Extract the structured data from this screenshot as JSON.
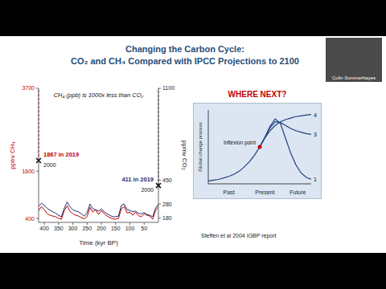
{
  "title": [
    "Changing the Carbon Cycle:",
    "CO₂ and CH₄ Compared with IPCC Projections to 2100"
  ],
  "speaker": "Colin Summerhayes",
  "chart_data": [
    {
      "type": "line",
      "xlabel": "Time (kyr BP)",
      "ylabel": "ppbv CH₄",
      "y2label": "ppmv CO₂",
      "annotations": [
        "CH₄ (ppb) is 1000x less than CO₂"
      ],
      "x": [
        420,
        410,
        400,
        390,
        380,
        370,
        360,
        350,
        340,
        330,
        320,
        310,
        300,
        290,
        280,
        270,
        260,
        250,
        240,
        230,
        220,
        210,
        200,
        190,
        180,
        170,
        160,
        150,
        140,
        130,
        120,
        110,
        100,
        90,
        80,
        70,
        60,
        50,
        40,
        30,
        20,
        10,
        0
      ],
      "xlim": [
        420,
        0
      ],
      "xticks": [
        400,
        350,
        300,
        250,
        200,
        150,
        100,
        50
      ],
      "ylim": [
        300,
        3700
      ],
      "yticks": [
        400,
        1600,
        3700
      ],
      "y2lim": [
        150,
        1100
      ],
      "y2ticks": [
        180,
        280,
        450,
        1100
      ],
      "series": [
        {
          "color": "#c00000",
          "values": [
            600,
            700,
            620,
            520,
            480,
            460,
            440,
            400,
            380,
            600,
            720,
            580,
            520,
            480,
            460,
            420,
            390,
            450,
            680,
            560,
            620,
            500,
            600,
            520,
            460,
            420,
            390,
            380,
            400,
            650,
            700,
            540,
            560,
            480,
            560,
            470,
            440,
            520,
            480,
            460,
            380,
            600,
            700
          ],
          "now": {
            "value": 1867,
            "label": "1867 in 2019",
            "note": "2000"
          },
          "projection_2100": 3700
        },
        {
          "color": "#1f2d6e",
          "axis": "y2",
          "values": [
            265,
            285,
            270,
            250,
            235,
            225,
            215,
            200,
            190,
            250,
            295,
            260,
            240,
            230,
            225,
            210,
            195,
            220,
            280,
            245,
            240,
            230,
            245,
            225,
            210,
            200,
            190,
            190,
            195,
            270,
            280,
            240,
            235,
            225,
            230,
            215,
            210,
            220,
            205,
            200,
            190,
            250,
            280
          ],
          "now": {
            "value": 411,
            "label": "411 in 2019",
            "note": "2000"
          },
          "projection_2100": 1100
        }
      ]
    },
    {
      "type": "line",
      "title": "WHERE NEXT?",
      "ylabel": "Global change process",
      "caption": "Steffen et al 2004 IGBP report",
      "x": [
        0,
        0.5,
        1,
        1.5,
        2,
        2.5,
        3,
        3.5,
        4,
        4.5,
        5,
        5.5,
        6,
        6.5,
        7,
        7.5,
        8,
        8.5,
        9,
        9.5,
        10
      ],
      "xlim": [
        0,
        10
      ],
      "ylim": [
        0,
        1
      ],
      "xticks": [
        {
          "value": 2,
          "label": "Past"
        },
        {
          "value": 5.5,
          "label": "Present"
        },
        {
          "value": 8.7,
          "label": "Future"
        }
      ],
      "yticks": [],
      "tick_labels": "x",
      "color": "#1f3f7f",
      "series": [
        {
          "name": "4",
          "values": [
            0.04,
            0.05,
            0.06,
            0.08,
            0.1,
            0.13,
            0.17,
            0.23,
            0.3,
            0.39,
            0.5,
            0.62,
            0.72,
            0.79,
            0.84,
            0.87,
            0.89,
            0.91,
            0.92,
            0.93,
            0.94
          ]
        },
        {
          "name": "3",
          "values": [
            null,
            null,
            null,
            null,
            null,
            null,
            null,
            null,
            null,
            null,
            0.5,
            0.63,
            0.76,
            0.84,
            0.83,
            0.79,
            0.75,
            0.72,
            0.7,
            0.68,
            0.67
          ]
        },
        {
          "name": "1",
          "values": [
            null,
            null,
            null,
            null,
            null,
            null,
            null,
            null,
            null,
            null,
            0.5,
            0.63,
            0.78,
            0.88,
            0.82,
            0.62,
            0.42,
            0.26,
            0.15,
            0.09,
            0.06
          ]
        }
      ],
      "inflection": {
        "x": 5,
        "y": 0.5,
        "label": "Inflexion point",
        "color": "#c00000"
      }
    }
  ]
}
